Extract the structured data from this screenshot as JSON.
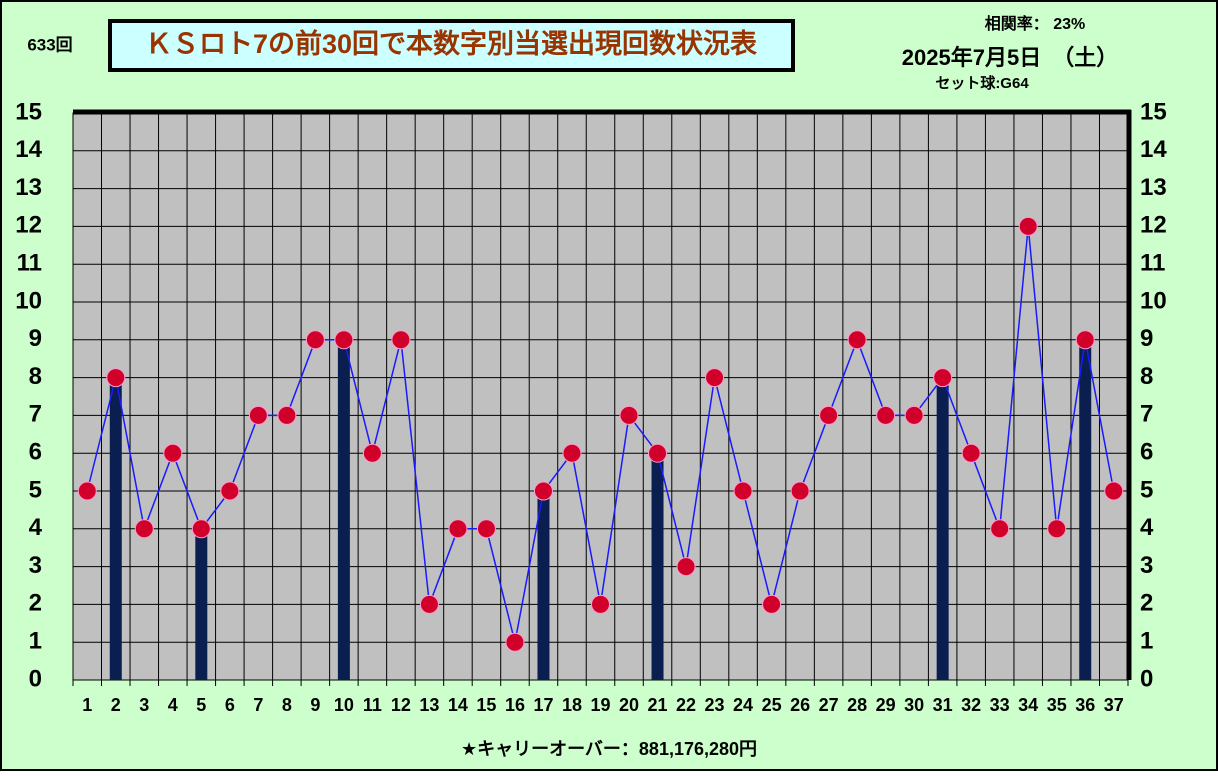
{
  "chart_data": {
    "type": "bar-line",
    "round_label": "633回",
    "title": "ＫＳロト7の前30回で本数字別当選出現回数状況表",
    "correlation": "相関率：  23%",
    "date": "2025年7月5日　（土）",
    "set_ball": "セット球:G64",
    "footer": "★キャリーオーバー：881,176,280円",
    "categories": [
      1,
      2,
      3,
      4,
      5,
      6,
      7,
      8,
      9,
      10,
      11,
      12,
      13,
      14,
      15,
      16,
      17,
      18,
      19,
      20,
      21,
      22,
      23,
      24,
      25,
      26,
      27,
      28,
      29,
      30,
      31,
      32,
      33,
      34,
      35,
      36,
      37
    ],
    "series": [
      {
        "type": "bar",
        "color": "#0a1e50",
        "values": [
          null,
          8,
          null,
          null,
          4,
          null,
          null,
          null,
          null,
          9,
          null,
          null,
          null,
          null,
          null,
          null,
          5,
          null,
          null,
          null,
          6,
          null,
          null,
          null,
          null,
          null,
          null,
          null,
          null,
          null,
          8,
          null,
          null,
          null,
          null,
          9,
          null
        ]
      },
      {
        "type": "line",
        "color": "#1a1aff",
        "marker_color": "#d0002a",
        "values": [
          5,
          8,
          4,
          6,
          4,
          5,
          7,
          7,
          9,
          9,
          6,
          9,
          2,
          4,
          4,
          1,
          5,
          6,
          2,
          7,
          6,
          3,
          8,
          5,
          2,
          5,
          7,
          9,
          7,
          7,
          8,
          6,
          4,
          12,
          4,
          9,
          5
        ]
      }
    ],
    "ylim": [
      0,
      15
    ],
    "yticks": [
      0,
      1,
      2,
      3,
      4,
      5,
      6,
      7,
      8,
      9,
      10,
      11,
      12,
      13,
      14,
      15
    ],
    "grid": true
  }
}
